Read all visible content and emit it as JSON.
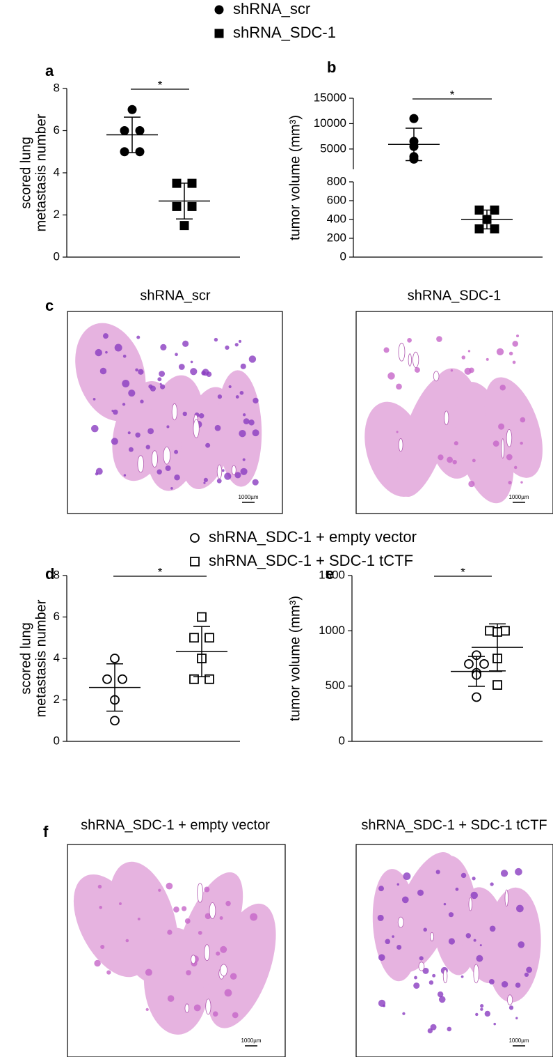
{
  "chart_data": [
    {
      "type": "dot",
      "panel": "a",
      "ylabel": [
        "scored lung",
        "metastasis number"
      ],
      "ylim": [
        0,
        8
      ],
      "yticks": [
        0,
        2,
        4,
        6,
        8
      ],
      "significance": "*",
      "series": [
        {
          "name": "shRNA_scr",
          "marker": "circle",
          "filled": true,
          "color": "#000000",
          "values": [
            7,
            6,
            6,
            5,
            5
          ],
          "mean": 5.8,
          "sd": 0.84
        },
        {
          "name": "shRNA_SDC-1",
          "marker": "square",
          "filled": true,
          "color": "#000000",
          "values": [
            3.5,
            3.5,
            2.4,
            2.4,
            1.5
          ],
          "mean": 2.66,
          "sd": 0.85
        }
      ]
    },
    {
      "type": "dot",
      "panel": "b",
      "ylabel": [
        "tumor volume (mm³)"
      ],
      "ylim": [
        0,
        800
      ],
      "yticks": [
        0,
        200,
        400,
        600,
        800
      ],
      "upper_ylim": [
        1000,
        15000
      ],
      "upper_yticks": [
        5000,
        10000,
        15000
      ],
      "significance": "*",
      "series": [
        {
          "marker": "circle",
          "filled": true,
          "color": "#000000",
          "values": [
            11000,
            6500,
            5500,
            3500,
            3000
          ],
          "mean": 5900,
          "sd": 3190
        },
        {
          "marker": "square",
          "filled": true,
          "color": "#000000",
          "values": [
            500,
            500,
            400,
            300,
            300
          ],
          "mean": 400,
          "sd": 100
        }
      ]
    },
    {
      "type": "dot",
      "panel": "d",
      "ylabel": [
        "scored lung",
        "metastasis number"
      ],
      "ylim": [
        0,
        8
      ],
      "yticks": [
        0,
        2,
        4,
        6,
        8
      ],
      "significance": "*",
      "series": [
        {
          "name": "shRNA_SDC-1 + empty vector",
          "marker": "circle",
          "filled": false,
          "color": "#000000",
          "values": [
            4,
            3,
            3,
            2,
            1
          ],
          "mean": 2.6,
          "sd": 1.14
        },
        {
          "name": "shRNA_SDC-1 + SDC-1 tCTF",
          "marker": "square",
          "filled": false,
          "color": "#000000",
          "values": [
            6,
            5,
            5,
            4,
            3,
            3
          ],
          "mean": 4.33,
          "sd": 1.21
        }
      ]
    },
    {
      "type": "dot",
      "panel": "e",
      "ylabel": [
        "tumor volume (mm³)"
      ],
      "ylim": [
        0,
        1500
      ],
      "yticks": [
        0,
        500,
        1000,
        1500
      ],
      "significance": "*",
      "series": [
        {
          "marker": "circle",
          "filled": false,
          "color": "#000000",
          "values": [
            780,
            700,
            700,
            620,
            600,
            400
          ],
          "mean": 633,
          "sd": 135
        },
        {
          "marker": "square",
          "filled": false,
          "color": "#000000",
          "values": [
            1000,
            1000,
            990,
            750,
            510
          ],
          "mean": 850,
          "sd": 213
        }
      ]
    }
  ],
  "micrographs": [
    {
      "panel": "c",
      "items": [
        {
          "title": "shRNA_scr",
          "scale_bar": "1000µm"
        },
        {
          "title": "shRNA_SDC-1",
          "scale_bar": "1000µm"
        }
      ]
    },
    {
      "panel": "f",
      "items": [
        {
          "title": "shRNA_SDC-1 + empty vector",
          "scale_bar": "1000µm"
        },
        {
          "title": "shRNA_SDC-1 + SDC-1 tCTF",
          "scale_bar": "1000µm"
        }
      ]
    }
  ]
}
